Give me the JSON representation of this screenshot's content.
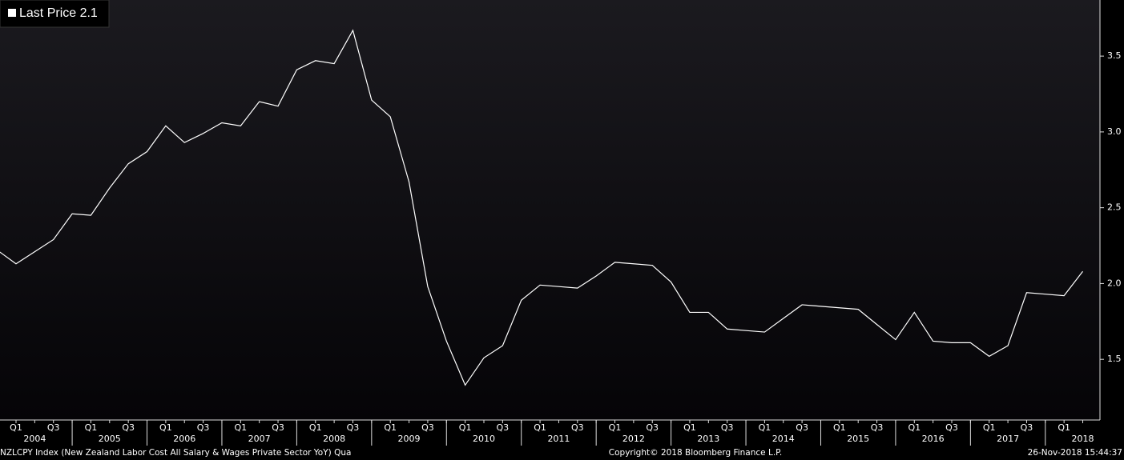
{
  "chart_data": {
    "type": "line",
    "categories": [
      null,
      "Q1",
      null,
      "Q3",
      null,
      "Q1",
      null,
      "Q3",
      null,
      "Q1",
      null,
      "Q3",
      null,
      "Q1",
      null,
      "Q3",
      null,
      "Q1",
      null,
      "Q3",
      null,
      "Q1",
      null,
      "Q3",
      null,
      "Q1",
      null,
      "Q3",
      null,
      "Q1",
      null,
      "Q3",
      null,
      "Q1",
      null,
      "Q3",
      null,
      "Q1",
      null,
      "Q3",
      null,
      "Q1",
      null,
      "Q3",
      null,
      "Q1",
      null,
      "Q3",
      null,
      "Q1",
      null,
      "Q3",
      null,
      "Q1",
      null,
      "Q3",
      null,
      "Q1",
      null
    ],
    "years": [
      "2004",
      "2005",
      "2006",
      "2007",
      "2008",
      "2009",
      "2010",
      "2011",
      "2012",
      "2013",
      "2014",
      "2015",
      "2016",
      "2017",
      "2018"
    ],
    "series": [
      {
        "name": "Last Price 2.1",
        "color": "#ffffff",
        "values": [
          2.22,
          2.13,
          2.21,
          2.29,
          2.46,
          2.45,
          2.63,
          2.79,
          2.87,
          3.04,
          2.93,
          2.99,
          3.06,
          3.04,
          3.2,
          3.17,
          3.41,
          3.47,
          3.45,
          3.67,
          3.21,
          3.1,
          2.67,
          1.98,
          1.62,
          1.33,
          1.51,
          1.59,
          1.89,
          1.99,
          1.98,
          1.97,
          2.05,
          2.14,
          2.13,
          2.12,
          2.01,
          1.81,
          1.81,
          1.7,
          1.69,
          1.68,
          1.77,
          1.86,
          1.85,
          1.84,
          1.83,
          1.73,
          1.63,
          1.81,
          1.62,
          1.61,
          1.61,
          1.52,
          1.59,
          1.94,
          1.93,
          1.92,
          2.08
        ]
      }
    ],
    "ylim": [
      1.1,
      3.87
    ],
    "yticks": [
      1.5,
      {
        "value": 2,
        "label": "2.0"
      },
      2.5,
      {
        "value": 3,
        "label": "3.0"
      },
      3.5
    ],
    "footer_left": "NZLCPY Index (New Zealand Labor Cost All Salary & Wages Private Sector YoY)  Qua",
    "footer_center": "Copyright© 2018 Bloomberg Finance L.P.",
    "footer_right": "26-Nov-2018 15:44:37"
  }
}
